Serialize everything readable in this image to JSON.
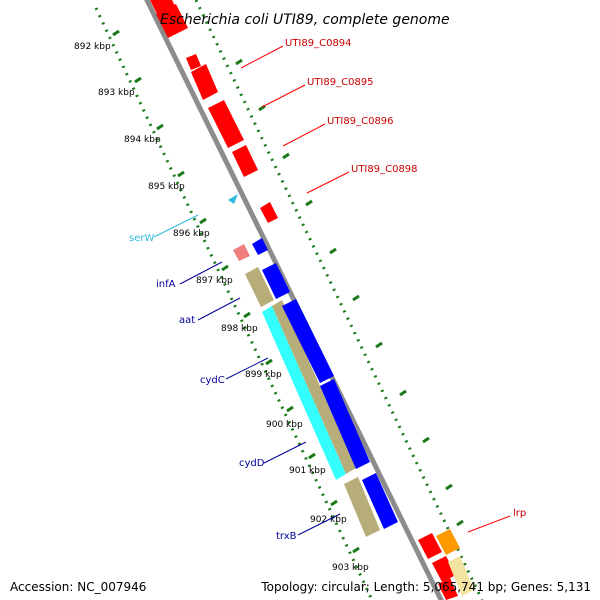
{
  "title": "Escherichia coli UTI89, complete genome",
  "footer": {
    "accession": "Accession: NC_007946",
    "stats": "Topology: circular; Length: 5,065,741 bp; Genes: 5,131"
  },
  "colors": {
    "backbone": "#8c8c8c",
    "dotted_ring": "#1a7a1a",
    "cds_plus": "#ff0000",
    "cds_minus": "#0000ff",
    "trna": "#33cccc",
    "rrna_like": "#b7ad78",
    "cyan_long": "#33ffff",
    "pink": "#f08080",
    "orange": "#ff9900",
    "pale_yellow": "#f3e3a0"
  },
  "kbp_ticks": [
    "892 kbp",
    "893 kbp",
    "894 kbp",
    "895 kbp",
    "896 kbp",
    "897 kbp",
    "898 kbp",
    "899 kbp",
    "900 kbp",
    "901 kbp",
    "902 kbp",
    "903 kbp"
  ],
  "gene_labels": {
    "right": [
      {
        "text": "UTI89_C0894",
        "color": "#cc0000"
      },
      {
        "text": "UTI89_C0895",
        "color": "#cc0000"
      },
      {
        "text": "UTI89_C0896",
        "color": "#cc0000"
      },
      {
        "text": "UTI89_C0898",
        "color": "#cc0000"
      },
      {
        "text": "lrp",
        "color": "#cc0000"
      }
    ],
    "left": [
      {
        "text": "serW",
        "color": "#33bbdd"
      },
      {
        "text": "infA",
        "color": "#000099"
      },
      {
        "text": "aat",
        "color": "#000099"
      },
      {
        "text": "cydC",
        "color": "#000099"
      },
      {
        "text": "cydD",
        "color": "#000099"
      },
      {
        "text": "trxB",
        "color": "#000099"
      }
    ]
  }
}
